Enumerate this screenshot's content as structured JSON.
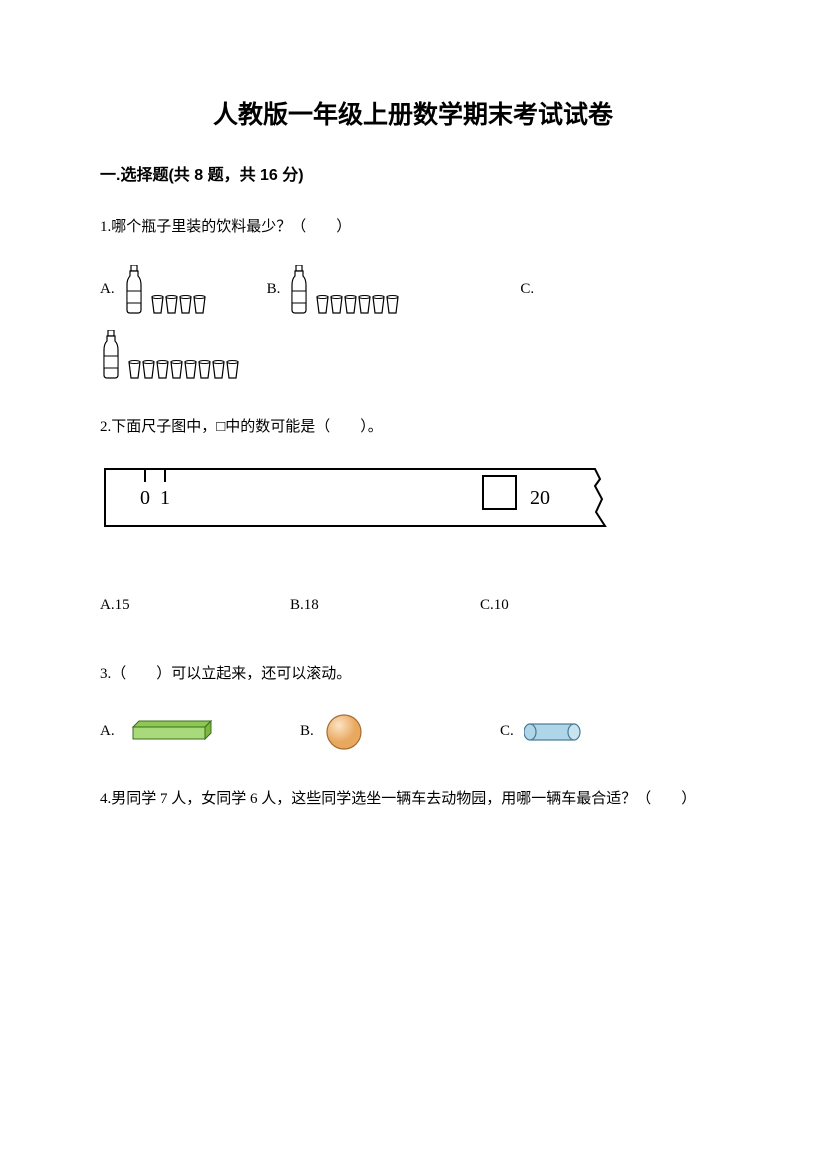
{
  "title": "人教版一年级上册数学期末考试试卷",
  "section1": {
    "header": "一.选择题(共 8 题，共 16 分)",
    "q1": {
      "text": "1.哪个瓶子里装的饮料最少？（　　）",
      "optA": "A.",
      "optB": "B.",
      "optC": "C.",
      "cupsA": 4,
      "cupsB": 6,
      "cupsC": 8,
      "colors": {
        "bottle_stroke": "#000000",
        "bottle_fill": "#ffffff",
        "cup_stroke": "#000000",
        "cup_fill": "#ffffff"
      }
    },
    "q2": {
      "text": "2.下面尺子图中，□中的数可能是（　　）。",
      "ruler": {
        "tick0": "0",
        "tick1": "1",
        "tickEnd": "20",
        "stroke": "#000000",
        "fill": "#ffffff"
      },
      "optA": "A.15",
      "optB": "B.18",
      "optC": "C.10"
    },
    "q3": {
      "text": "3.（　　）可以立起来，还可以滚动。",
      "optA": "A.",
      "optB": "B.",
      "optC": "C.",
      "colors": {
        "cuboid_fill": "#a8d97a",
        "cuboid_stroke": "#3d6b1f",
        "sphere_fill": "#f5c789",
        "sphere_stroke": "#a86b2e",
        "cylinder_fill": "#aed6e8",
        "cylinder_stroke": "#4a7a94"
      }
    },
    "q4": {
      "text": "4.男同学 7 人，女同学 6 人，这些同学选坐一辆车去动物园，用哪一辆车最合适？（　　）"
    }
  }
}
